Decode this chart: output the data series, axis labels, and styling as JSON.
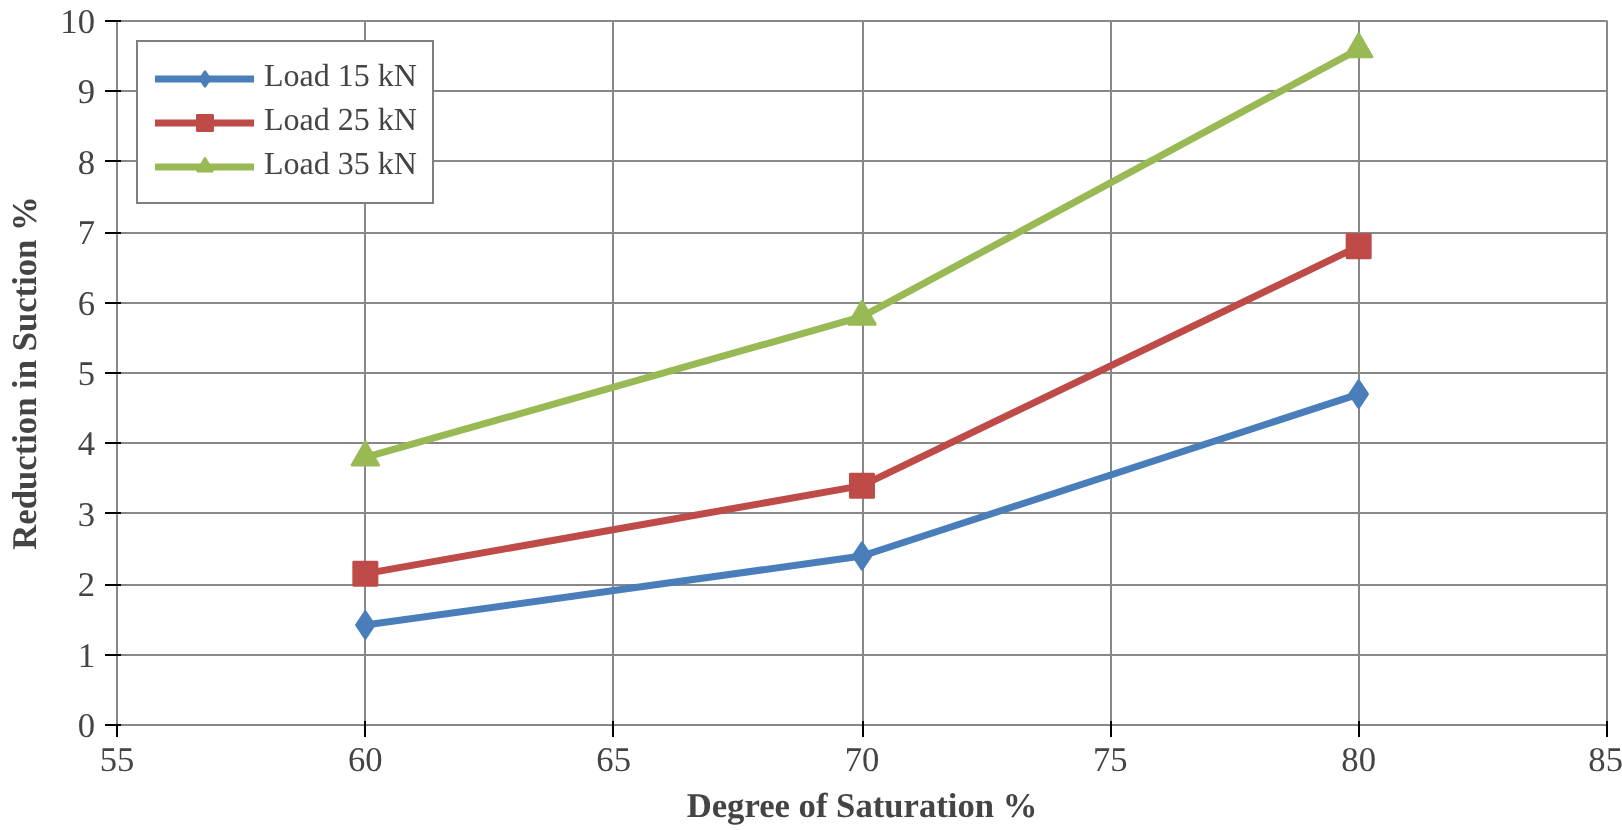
{
  "chart_data": {
    "type": "line",
    "xlabel": "Degree of Saturation %",
    "ylabel": "Reduction in Suction %",
    "x": [
      60,
      70,
      80
    ],
    "series": [
      {
        "name": "Load 15 kN",
        "color": "#4a7ebb",
        "values": [
          1.42,
          2.4,
          4.7
        ],
        "marker": "diamond"
      },
      {
        "name": "Load 25 kN",
        "color": "#be4b48",
        "values": [
          2.15,
          3.4,
          6.8
        ],
        "marker": "square"
      },
      {
        "name": "Load 35 kN",
        "color": "#98b954",
        "values": [
          3.8,
          5.8,
          9.6
        ],
        "marker": "triangle"
      }
    ],
    "xlim": [
      55,
      85
    ],
    "xticks": [
      55,
      60,
      65,
      70,
      75,
      80,
      85
    ],
    "ylim": [
      0,
      10
    ],
    "yticks": [
      0,
      1,
      2,
      3,
      4,
      5,
      6,
      7,
      8,
      9,
      10
    ],
    "grid": true,
    "legend": "top left",
    "line_style": "solid"
  }
}
